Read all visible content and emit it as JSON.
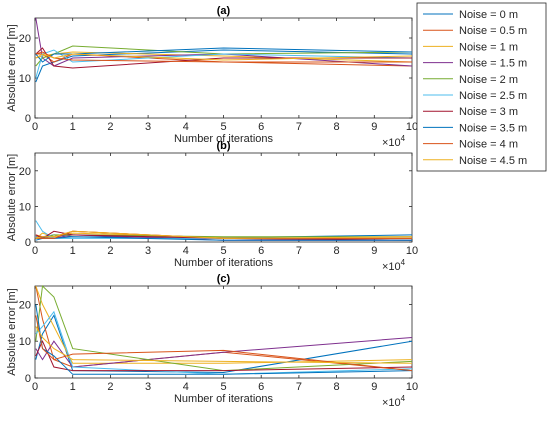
{
  "chart_data": [
    {
      "type": "line",
      "title": "(a)",
      "xlabel": "Number of iterations",
      "ylabel": "Absolute error [m]",
      "x_multiplier_label": "×10",
      "x_multiplier_exp": "4",
      "xlim": [
        0,
        10
      ],
      "ylim": [
        0,
        25
      ],
      "xticks": [
        "0",
        "1",
        "2",
        "3",
        "4",
        "5",
        "6",
        "7",
        "8",
        "9",
        "10"
      ],
      "yticks": [
        "0",
        "10",
        "20"
      ],
      "x": [
        0.02,
        0.2,
        0.5,
        1,
        5,
        10
      ],
      "series": [
        {
          "name": "Noise = 0 m",
          "values": [
            9,
            13,
            14,
            15.5,
            17,
            16
          ]
        },
        {
          "name": "Noise = 0.5 m",
          "values": [
            16,
            16,
            14,
            16,
            14,
            13
          ]
        },
        {
          "name": "Noise = 1 m",
          "values": [
            15,
            15.5,
            16,
            16.5,
            15.5,
            14
          ]
        },
        {
          "name": "Noise = 1.5 m",
          "values": [
            25,
            15,
            13,
            15,
            16,
            13
          ]
        },
        {
          "name": "Noise = 2 m",
          "values": [
            13,
            15,
            16,
            18,
            16,
            16.5
          ]
        },
        {
          "name": "Noise = 2.5 m",
          "values": [
            10,
            16,
            17,
            14,
            16,
            15
          ]
        },
        {
          "name": "Noise = 3 m",
          "values": [
            16,
            17.5,
            13,
            12.5,
            15,
            15
          ]
        },
        {
          "name": "Noise = 3.5 m",
          "values": [
            16,
            14,
            16,
            16,
            17.5,
            16.5
          ]
        },
        {
          "name": "Noise = 4 m",
          "values": [
            16,
            16.5,
            15,
            14.5,
            14,
            14
          ]
        },
        {
          "name": "Noise = 4.5 m",
          "values": [
            15,
            16,
            15,
            16,
            14.5,
            15.5
          ]
        }
      ],
      "legend_position": "right"
    },
    {
      "type": "line",
      "title": "(b)",
      "xlabel": "Number of iterations",
      "ylabel": "Absolute error [m]",
      "x_multiplier_label": "×10",
      "x_multiplier_exp": "4",
      "xlim": [
        0,
        10
      ],
      "ylim": [
        0,
        25
      ],
      "xticks": [
        "0",
        "1",
        "2",
        "3",
        "4",
        "5",
        "6",
        "7",
        "8",
        "9",
        "10"
      ],
      "yticks": [
        "0",
        "10",
        "20"
      ],
      "x": [
        0.02,
        0.2,
        0.5,
        1,
        5,
        10
      ],
      "series": [
        {
          "name": "Noise = 0 m",
          "values": [
            1.5,
            1.5,
            2,
            1.5,
            1.2,
            2
          ]
        },
        {
          "name": "Noise = 0.5 m",
          "values": [
            2,
            1.5,
            1.5,
            3,
            1,
            1
          ]
        },
        {
          "name": "Noise = 1 m",
          "values": [
            1,
            2.5,
            1.5,
            2.5,
            1.2,
            1
          ]
        },
        {
          "name": "Noise = 1.5 m",
          "values": [
            1,
            1.2,
            1,
            2,
            0.5,
            0.5
          ]
        },
        {
          "name": "Noise = 2 m",
          "values": [
            1,
            1,
            2,
            2,
            1.5,
            1.5
          ]
        },
        {
          "name": "Noise = 2.5 m",
          "values": [
            6,
            3,
            1,
            1,
            1,
            0.5
          ]
        },
        {
          "name": "Noise = 3 m",
          "values": [
            2,
            1,
            3,
            2,
            1,
            0.5
          ]
        },
        {
          "name": "Noise = 3.5 m",
          "values": [
            0.5,
            1,
            1,
            1.5,
            0.5,
            0.5
          ]
        },
        {
          "name": "Noise = 4 m",
          "values": [
            1,
            1,
            1,
            3,
            1,
            1
          ]
        },
        {
          "name": "Noise = 4.5 m",
          "values": [
            1,
            1.5,
            1.5,
            3,
            1,
            1.5
          ]
        }
      ]
    },
    {
      "type": "line",
      "title": "(c)",
      "xlabel": "Number of iterations",
      "ylabel": "Absolute error [m]",
      "x_multiplier_label": "×10",
      "x_multiplier_exp": "4",
      "xlim": [
        0,
        10
      ],
      "ylim": [
        0,
        25
      ],
      "xticks": [
        "0",
        "1",
        "2",
        "3",
        "4",
        "5",
        "6",
        "7",
        "8",
        "9",
        "10"
      ],
      "yticks": [
        "0",
        "10",
        "20"
      ],
      "x": [
        0.02,
        0.2,
        0.5,
        1,
        5,
        10
      ],
      "series": [
        {
          "name": "Noise = 0 m",
          "values": [
            5,
            12,
            17,
            2,
            1.5,
            10
          ]
        },
        {
          "name": "Noise = 0.5 m",
          "values": [
            25,
            16,
            5,
            3,
            7,
            2
          ]
        },
        {
          "name": "Noise = 1 m",
          "values": [
            25,
            20,
            14,
            4,
            4,
            5
          ]
        },
        {
          "name": "Noise = 1.5 m",
          "values": [
            8,
            5,
            10,
            3,
            7,
            11
          ]
        },
        {
          "name": "Noise = 2 m",
          "values": [
            10,
            25,
            22,
            8,
            2,
            4.5
          ]
        },
        {
          "name": "Noise = 2.5 m",
          "values": [
            12,
            14,
            18,
            3,
            1,
            2.5
          ]
        },
        {
          "name": "Noise = 3 m",
          "values": [
            6,
            10,
            3,
            2,
            2,
            3
          ]
        },
        {
          "name": "Noise = 3.5 m",
          "values": [
            20,
            8,
            6,
            1,
            1,
            2
          ]
        },
        {
          "name": "Noise = 4 m",
          "values": [
            17,
            8,
            5,
            6.5,
            7.5,
            2
          ]
        },
        {
          "name": "Noise = 4.5 m",
          "values": [
            14,
            11,
            8,
            5,
            4.5,
            4
          ]
        }
      ]
    }
  ],
  "colors": [
    "#0072BD",
    "#D95319",
    "#EDB120",
    "#7E2F8E",
    "#77AC30",
    "#4DBEEE",
    "#A2142F",
    "#0072BD",
    "#D95319",
    "#EDB120"
  ]
}
